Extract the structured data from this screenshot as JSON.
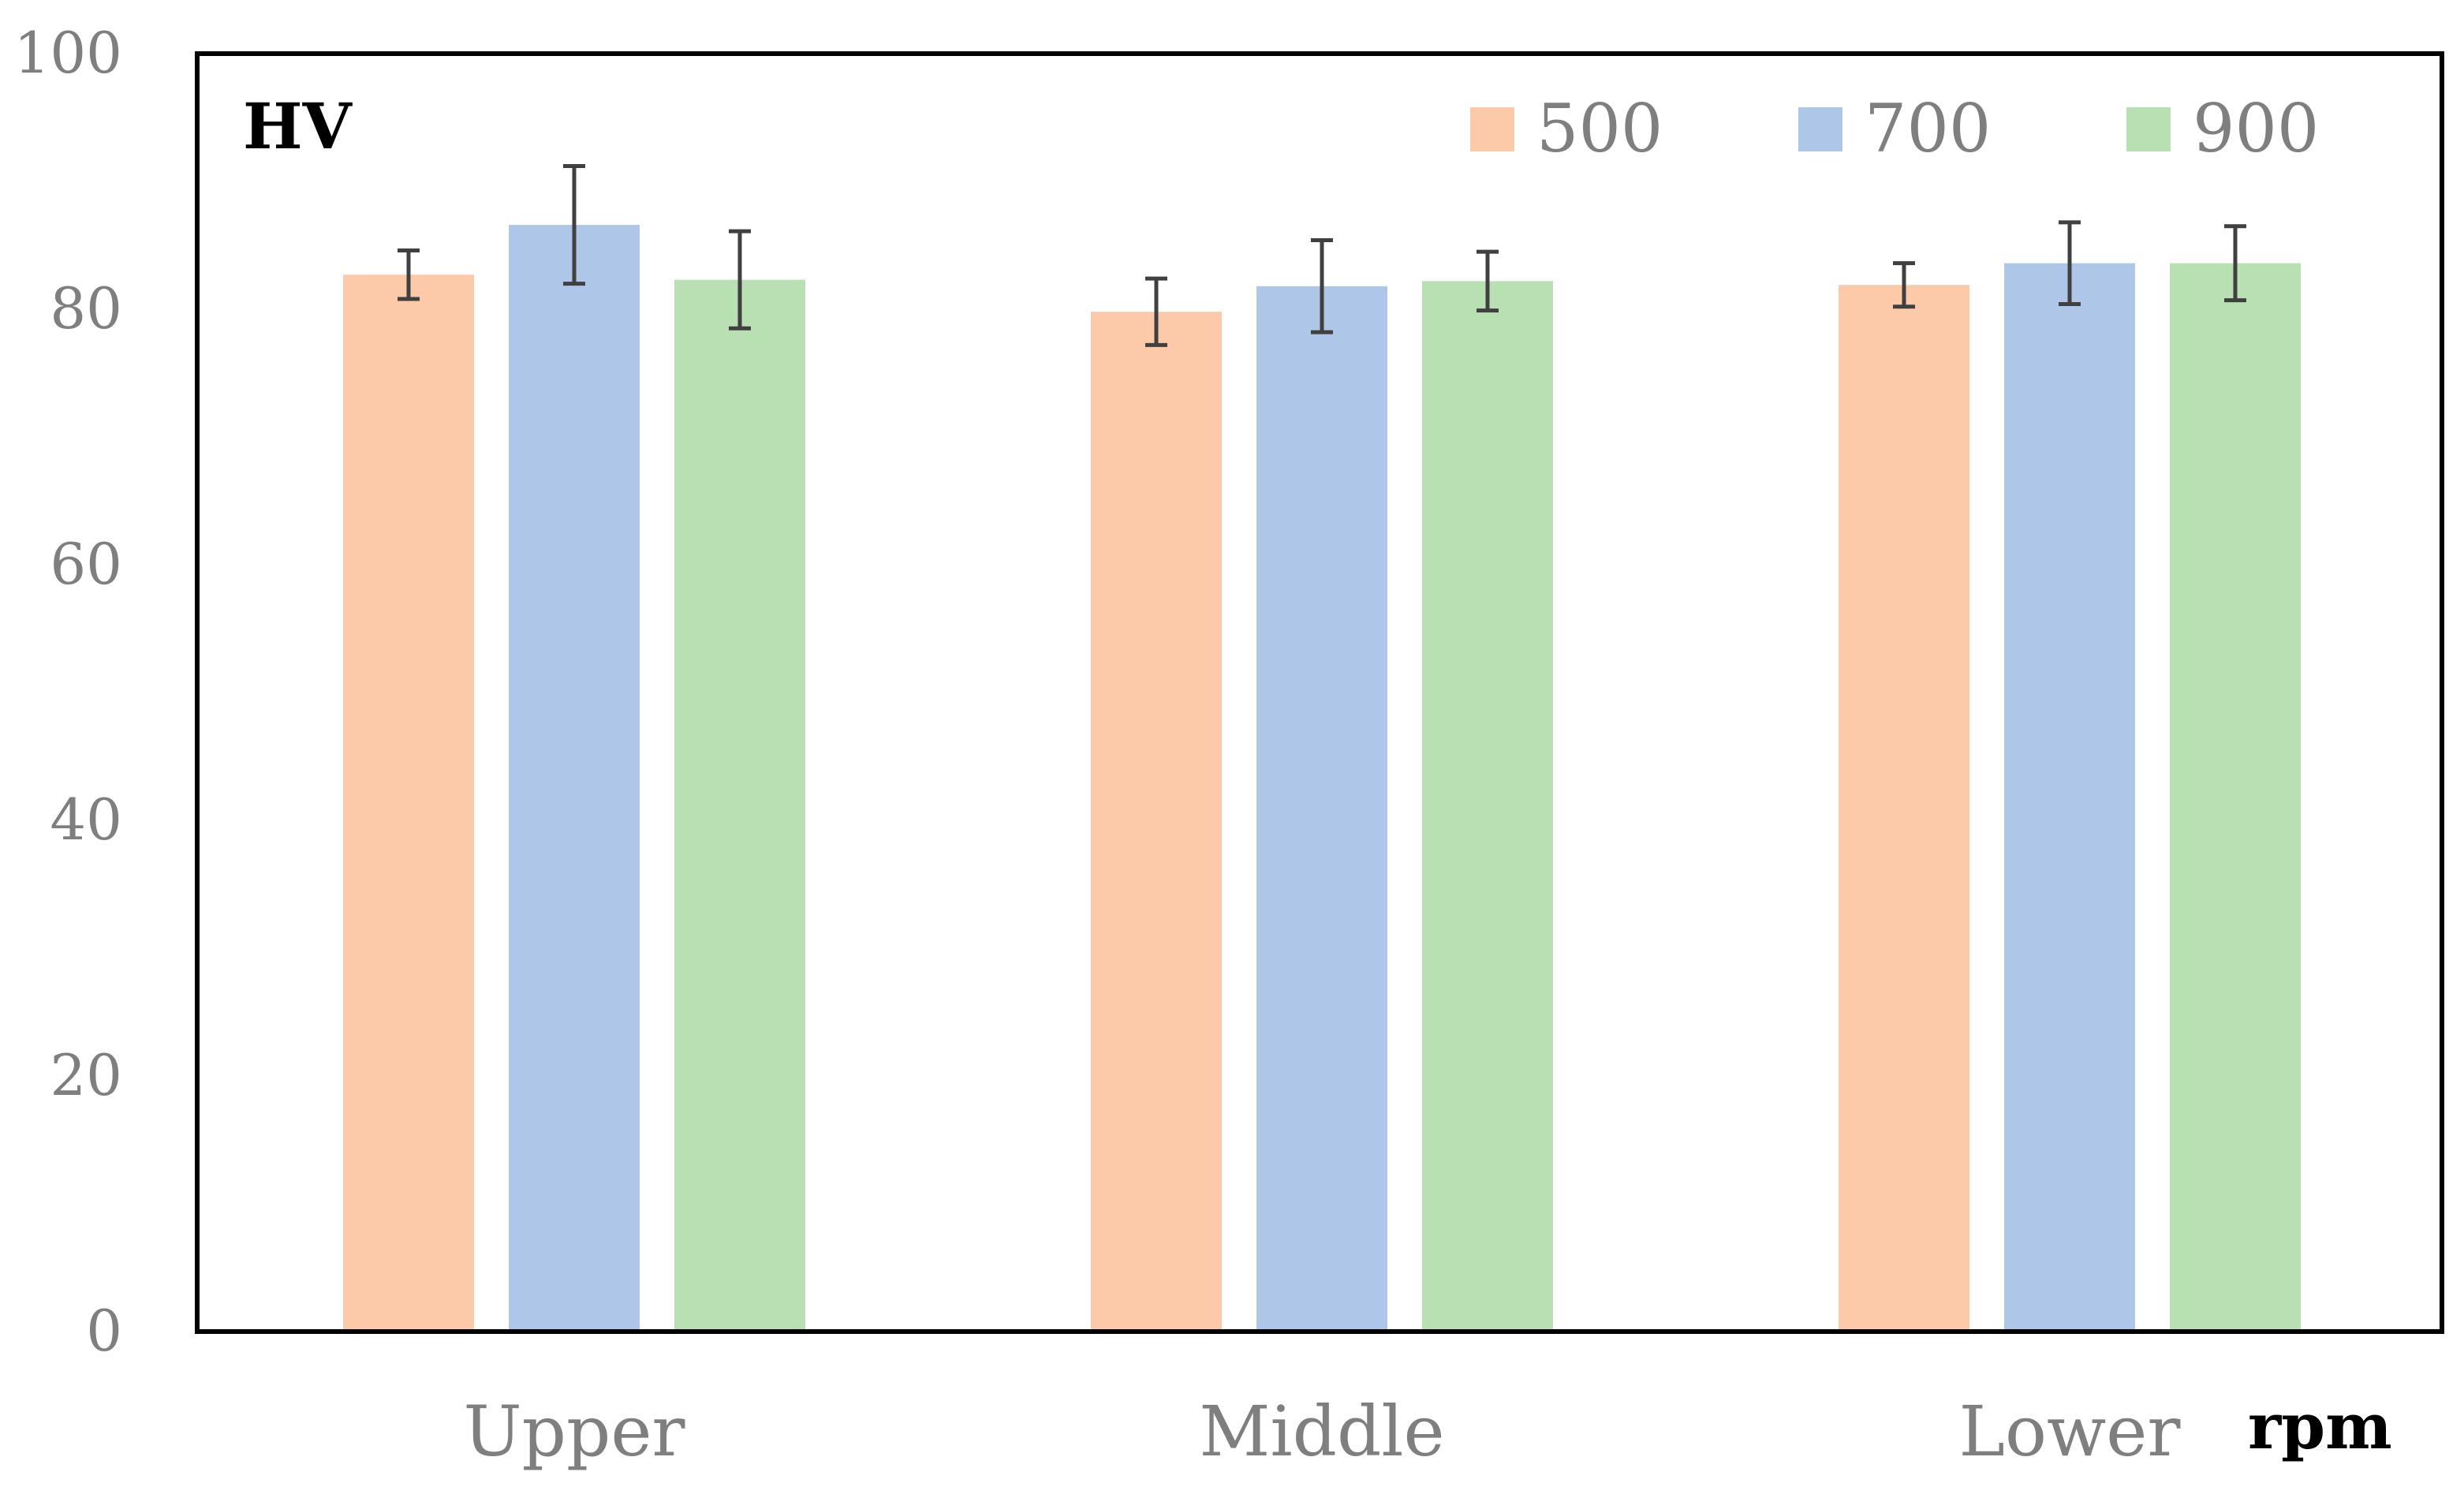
{
  "chart_data": {
    "type": "bar",
    "ylabel": "HV",
    "xlabel": "rpm",
    "categories": [
      "Upper",
      "Middle",
      "Lower"
    ],
    "ylim": [
      0,
      100
    ],
    "yticks": [
      0,
      20,
      40,
      60,
      80,
      100
    ],
    "grid": false,
    "legend_position": "top-right",
    "series": [
      {
        "name": "500",
        "color": "#fccaa9",
        "values": [
          82.7,
          79.8,
          81.9
        ],
        "errors": [
          1.9,
          2.6,
          1.7
        ]
      },
      {
        "name": "700",
        "color": "#aec7e8",
        "values": [
          86.6,
          81.8,
          83.6
        ],
        "errors": [
          4.6,
          3.6,
          3.2
        ]
      },
      {
        "name": "900",
        "color": "#b9e0b3",
        "values": [
          82.3,
          82.2,
          83.6
        ],
        "errors": [
          3.8,
          2.3,
          2.9
        ]
      }
    ],
    "errorbar_color": "#404040"
  }
}
